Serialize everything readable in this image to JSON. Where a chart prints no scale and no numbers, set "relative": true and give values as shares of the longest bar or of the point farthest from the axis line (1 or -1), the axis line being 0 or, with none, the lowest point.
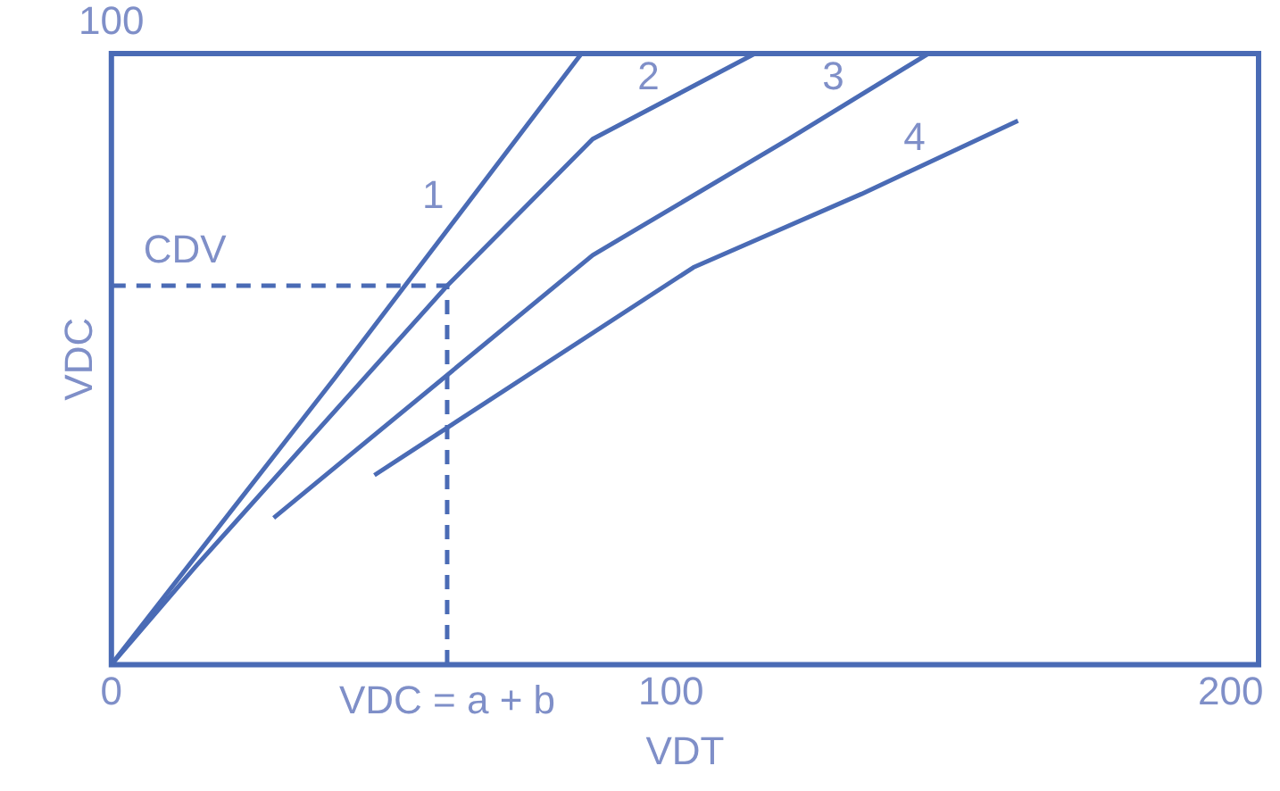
{
  "chart_data": {
    "type": "line",
    "xlabel": "VDT",
    "ylabel": "VDC",
    "relative": true,
    "xlim": [
      0,
      205
    ],
    "xticks": [
      0,
      100,
      200
    ],
    "grid": false,
    "legend": false,
    "marker": "none",
    "line_style": "solid",
    "series": [
      {
        "name": "1",
        "color": "#4a6bb5",
        "x": [
          0,
          40,
          84
        ],
        "values": [
          0,
          0.47,
          1
        ]
      },
      {
        "name": "2",
        "color": "#4a6bb5",
        "x": [
          0,
          15,
          60,
          86,
          115
        ],
        "values": [
          0,
          0.16,
          0.62,
          0.86,
          1
        ]
      },
      {
        "name": "3",
        "color": "#4a6bb5",
        "x": [
          29,
          86,
          121,
          146
        ],
        "values": [
          0.24,
          0.67,
          0.86,
          1
        ]
      },
      {
        "name": "4",
        "color": "#4a6bb5",
        "x": [
          47,
          104,
          134,
          162
        ],
        "values": [
          0.31,
          0.65,
          0.77,
          0.89
        ]
      },
      {
        "color": "#4a6bb5",
        "x": [
          0,
          60,
          60
        ],
        "values": [
          0.62,
          0.62,
          0
        ],
        "line_style": "dashed"
      }
    ],
    "annotations": [
      "100",
      "CDV",
      "VDC = a + b"
    ]
  }
}
